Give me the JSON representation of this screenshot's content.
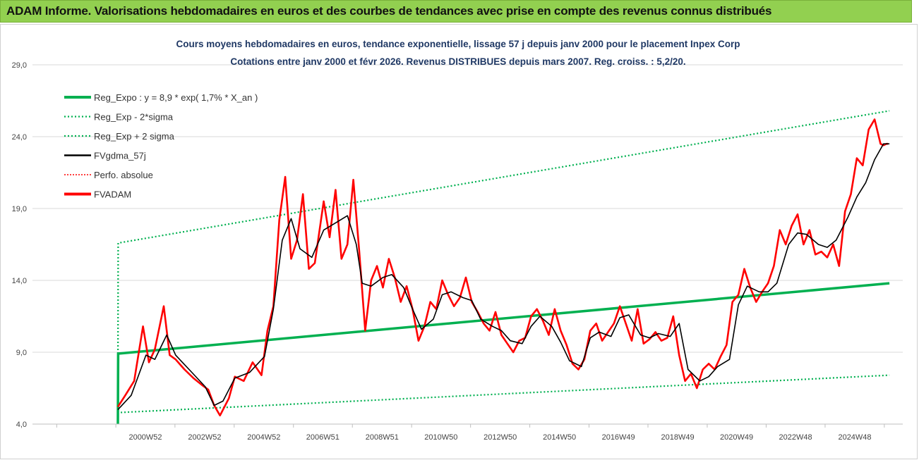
{
  "header": {
    "title": "ADAM Informe. Valorisations hebdomadaires en euros et des courbes de tendances avec prise en compte des revenus connus distribués"
  },
  "colors": {
    "header_bg": "#92d050",
    "title_text": "#1f3864",
    "regression": "#00b050",
    "band": "#00b050",
    "fvgdma": "#000000",
    "perfo": "#ff0000",
    "fvadam": "#ff0000",
    "grid": "#d9d9d9"
  },
  "chart_data": {
    "type": "line",
    "title": "Cours moyens hebdomadaires en euros, tendance exponentielle, lissage 57 j depuis janv 2000 pour le placement Inpex Corp",
    "subtitle": "Cotations entre janv 2000 et févr 2026. Revenus DISTRIBUES depuis mars 2007. Reg. croiss. : 5,2/20.",
    "ylim": [
      4.0,
      29.0
    ],
    "yticks": [
      "4,0",
      "9,0",
      "14,0",
      "19,0",
      "24,0",
      "29,0"
    ],
    "ytick_values": [
      4,
      9,
      14,
      19,
      24,
      29
    ],
    "xticks": [
      "2000W52",
      "2002W52",
      "2004W52",
      "2006W51",
      "2008W51",
      "2010W50",
      "2012W50",
      "2014W50",
      "2016W49",
      "2018W49",
      "2020W49",
      "2022W48",
      "2024W48"
    ],
    "xtick_years": [
      2000.98,
      2002.98,
      2004.98,
      2006.97,
      2008.97,
      2010.96,
      2012.96,
      2014.96,
      2016.95,
      2018.95,
      2020.94,
      2022.93,
      2024.93
    ],
    "xlim": [
      1997.0,
      2026.3
    ],
    "legend_position": "top-left",
    "legend": [
      {
        "label": "Reg_Expo : y = 8,9 * exp( 1,7% *  X_an )",
        "style": "solid-thick",
        "color": "#00b050"
      },
      {
        "label": "Reg_Exp - 2*sigma",
        "style": "dotted",
        "color": "#00b050"
      },
      {
        "label": "Reg_Exp + 2 sigma",
        "style": "dotted",
        "color": "#00b050"
      },
      {
        "label": "FVgdma_57j",
        "style": "solid",
        "color": "#000000"
      },
      {
        "label": "Perfo. absolue",
        "style": "dotted-thin",
        "color": "#ff0000"
      },
      {
        "label": "FVADAM",
        "style": "solid-thick",
        "color": "#ff0000"
      }
    ],
    "series": [
      {
        "name": "Reg_Expo : y = 8,9 * exp( 1,7% *  X_an )",
        "x": [
          2000.05,
          2000.06,
          2026.1
        ],
        "values": [
          4.0,
          8.9,
          13.8
        ]
      },
      {
        "name": "Reg_Exp - 2*sigma",
        "x": [
          2000.05,
          2000.06,
          2026.1
        ],
        "values": [
          4.0,
          4.8,
          7.4
        ]
      },
      {
        "name": "Reg_Exp + 2 sigma",
        "x": [
          2000.05,
          2000.06,
          2026.1
        ],
        "values": [
          4.0,
          16.6,
          25.8
        ]
      },
      {
        "name": "FVgdma_57j",
        "x": [
          2000.05,
          2000.5,
          2001.0,
          2001.3,
          2001.7,
          2002.0,
          2002.5,
          2003.0,
          2003.3,
          2003.6,
          2004.0,
          2004.5,
          2005.0,
          2005.3,
          2005.6,
          2005.9,
          2006.2,
          2006.6,
          2007.0,
          2007.4,
          2007.8,
          2008.1,
          2008.3,
          2008.6,
          2009.0,
          2009.3,
          2009.7,
          2010.0,
          2010.3,
          2010.7,
          2011.0,
          2011.3,
          2011.7,
          2012.0,
          2012.3,
          2012.7,
          2013.0,
          2013.3,
          2013.7,
          2014.0,
          2014.3,
          2014.7,
          2015.0,
          2015.3,
          2015.7,
          2016.0,
          2016.3,
          2016.7,
          2017.0,
          2017.3,
          2017.7,
          2018.0,
          2018.3,
          2018.7,
          2019.0,
          2019.3,
          2019.7,
          2020.0,
          2020.3,
          2020.7,
          2021.0,
          2021.3,
          2021.7,
          2022.0,
          2022.3,
          2022.7,
          2023.0,
          2023.3,
          2023.7,
          2024.0,
          2024.3,
          2024.7,
          2025.0,
          2025.3,
          2025.6,
          2025.9,
          2026.1
        ],
        "values": [
          5.0,
          6.0,
          8.8,
          8.5,
          10.2,
          8.8,
          7.7,
          6.6,
          5.3,
          5.6,
          7.2,
          7.6,
          8.7,
          12.0,
          16.8,
          18.3,
          16.2,
          15.6,
          17.5,
          18.0,
          18.5,
          16.5,
          13.8,
          13.6,
          14.2,
          14.4,
          13.5,
          12.0,
          10.6,
          11.3,
          13.0,
          13.2,
          12.8,
          12.6,
          11.3,
          10.8,
          10.5,
          9.8,
          9.6,
          10.8,
          11.5,
          10.8,
          9.7,
          8.4,
          8.0,
          10.0,
          10.4,
          10.1,
          11.4,
          11.6,
          10.2,
          10.0,
          10.3,
          10.1,
          11.0,
          7.8,
          7.0,
          7.3,
          8.0,
          8.5,
          12.3,
          13.6,
          13.2,
          13.2,
          13.8,
          16.5,
          17.3,
          17.2,
          16.5,
          16.3,
          16.8,
          18.4,
          19.8,
          20.8,
          22.4,
          23.5,
          23.5
        ]
      },
      {
        "name": "FVADAM",
        "x": [
          2000.05,
          2000.3,
          2000.6,
          2000.9,
          2001.1,
          2001.3,
          2001.6,
          2001.8,
          2002.0,
          2002.3,
          2002.6,
          2002.9,
          2003.1,
          2003.3,
          2003.5,
          2003.8,
          2004.0,
          2004.3,
          2004.6,
          2004.9,
          2005.1,
          2005.3,
          2005.5,
          2005.7,
          2005.9,
          2006.1,
          2006.3,
          2006.5,
          2006.7,
          2007.0,
          2007.2,
          2007.4,
          2007.6,
          2007.8,
          2008.0,
          2008.2,
          2008.4,
          2008.6,
          2008.8,
          2009.0,
          2009.2,
          2009.4,
          2009.6,
          2009.8,
          2010.0,
          2010.2,
          2010.4,
          2010.6,
          2010.8,
          2011.0,
          2011.2,
          2011.4,
          2011.6,
          2011.8,
          2012.0,
          2012.2,
          2012.4,
          2012.6,
          2012.8,
          2013.0,
          2013.2,
          2013.4,
          2013.6,
          2013.8,
          2014.0,
          2014.2,
          2014.4,
          2014.6,
          2014.8,
          2015.0,
          2015.2,
          2015.4,
          2015.6,
          2015.8,
          2016.0,
          2016.2,
          2016.4,
          2016.6,
          2016.8,
          2017.0,
          2017.2,
          2017.4,
          2017.6,
          2017.8,
          2018.0,
          2018.2,
          2018.4,
          2018.6,
          2018.8,
          2019.0,
          2019.2,
          2019.4,
          2019.6,
          2019.8,
          2020.0,
          2020.2,
          2020.4,
          2020.6,
          2020.8,
          2021.0,
          2021.2,
          2021.4,
          2021.6,
          2021.8,
          2022.0,
          2022.2,
          2022.4,
          2022.6,
          2022.8,
          2023.0,
          2023.2,
          2023.4,
          2023.6,
          2023.8,
          2024.0,
          2024.2,
          2024.4,
          2024.6,
          2024.8,
          2025.0,
          2025.2,
          2025.4,
          2025.6,
          2025.8,
          2025.9,
          2026.0,
          2026.05
        ],
        "values": [
          5.2,
          6.0,
          7.0,
          10.8,
          8.3,
          9.2,
          12.2,
          8.8,
          8.5,
          7.8,
          7.2,
          6.7,
          6.4,
          5.3,
          4.6,
          5.8,
          7.3,
          7.0,
          8.3,
          7.4,
          10.5,
          12.2,
          18.2,
          21.2,
          15.5,
          16.8,
          20.0,
          14.8,
          15.2,
          19.5,
          17.0,
          20.3,
          15.5,
          16.5,
          21.0,
          16.0,
          10.5,
          14.0,
          15.0,
          13.5,
          15.5,
          14.2,
          12.5,
          13.6,
          12.0,
          9.8,
          10.8,
          12.5,
          12.0,
          14.0,
          13.0,
          12.2,
          12.8,
          14.2,
          12.5,
          11.8,
          11.0,
          10.5,
          11.8,
          10.2,
          9.6,
          9.0,
          9.8,
          10.0,
          11.5,
          12.0,
          11.2,
          10.2,
          12.0,
          10.5,
          9.5,
          8.2,
          7.8,
          8.5,
          10.5,
          11.0,
          9.8,
          10.4,
          11.0,
          12.2,
          11.0,
          9.8,
          12.0,
          9.6,
          9.9,
          10.4,
          9.8,
          10.0,
          11.5,
          8.8,
          7.0,
          7.5,
          6.5,
          7.8,
          8.2,
          7.8,
          8.7,
          9.5,
          12.5,
          13.0,
          14.8,
          13.5,
          12.5,
          13.2,
          13.8,
          15.0,
          17.5,
          16.5,
          17.8,
          18.6,
          16.5,
          17.5,
          15.8,
          16.0,
          15.6,
          16.5,
          15.0,
          18.8,
          20.0,
          22.5,
          22.0,
          24.5,
          25.2,
          23.5,
          23.4,
          23.5,
          23.5
        ]
      },
      {
        "name": "Perfo. absolue",
        "x": [],
        "values": []
      }
    ]
  }
}
